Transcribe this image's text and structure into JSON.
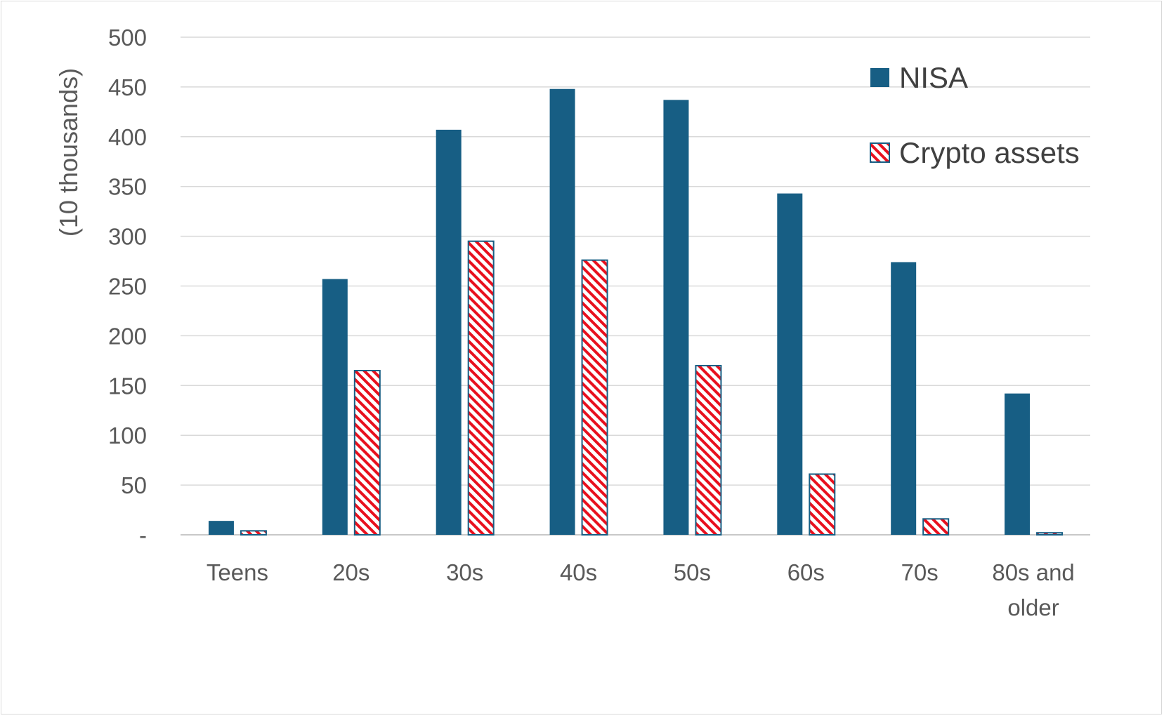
{
  "chart_data": {
    "type": "bar",
    "ylabel": "(10 thousands)",
    "ylim": [
      0,
      500
    ],
    "yticks": [
      {
        "value": 0,
        "label": "-"
      },
      {
        "value": 50,
        "label": "50"
      },
      {
        "value": 100,
        "label": "100"
      },
      {
        "value": 150,
        "label": "150"
      },
      {
        "value": 200,
        "label": "200"
      },
      {
        "value": 250,
        "label": "250"
      },
      {
        "value": 300,
        "label": "300"
      },
      {
        "value": 350,
        "label": "350"
      },
      {
        "value": 400,
        "label": "400"
      },
      {
        "value": 450,
        "label": "450"
      },
      {
        "value": 500,
        "label": "500"
      }
    ],
    "categories": [
      [
        "Teens"
      ],
      [
        "20s"
      ],
      [
        "30s"
      ],
      [
        "40s"
      ],
      [
        "50s"
      ],
      [
        "60s"
      ],
      [
        "70s"
      ],
      [
        "80s and",
        "older"
      ]
    ],
    "series": [
      {
        "name": "NISA",
        "values": [
          14,
          257,
          407,
          448,
          437,
          343,
          274,
          142
        ],
        "color": "#175e84",
        "pattern": "solid"
      },
      {
        "name": "Crypto assets",
        "values": [
          4,
          165,
          295,
          276,
          170,
          61,
          16,
          2
        ],
        "color": "#e8101e",
        "pattern": "diagonal-hatch"
      }
    ],
    "grid": true,
    "legend_position": "top-right"
  }
}
